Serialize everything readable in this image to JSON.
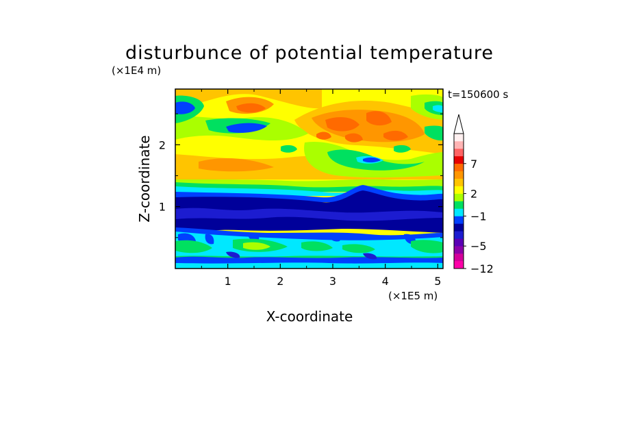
{
  "chart_data": {
    "type": "heatmap",
    "title": "disturbunce of potential temperature",
    "xlabel": "X-coordinate",
    "ylabel": "Z-coordinate",
    "x_unit": "(×1E5 m)",
    "y_unit": "(×1E4 m)",
    "time_label": "t=150600  s",
    "xlim": [
      0,
      5.1
    ],
    "ylim": [
      0,
      2.9
    ],
    "x_ticks": [
      "1",
      "2",
      "3",
      "4",
      "5"
    ],
    "y_ticks": [
      "1",
      "2"
    ],
    "colorbar_labels": [
      "7",
      "2",
      "−1",
      "−5",
      "−12"
    ],
    "palette": [
      "#ff00a8",
      "#d4009a",
      "#8c00a8",
      "#5a00b4",
      "#1c1cd0",
      "#00009a",
      "#0040ff",
      "#00e8ff",
      "#00e060",
      "#aaff00",
      "#ffff00",
      "#ffc400",
      "#ff9600",
      "#ff6a00",
      "#e60000",
      "#ff6464",
      "#ffb4b4",
      "#fff0f0"
    ],
    "layers": [
      {
        "z": [
          0.0,
          0.1
        ],
        "value": "−5 to −1",
        "color": "#0040ff"
      },
      {
        "z": [
          0.1,
          0.6
        ],
        "value": "−1 to 0",
        "color": "#00e8ff"
      },
      {
        "z": [
          0.6,
          1.3
        ],
        "value": "−5 to −3",
        "color": "#00009a"
      },
      {
        "z": [
          1.3,
          1.45
        ],
        "value": "0 to 1",
        "color": "#aaff00"
      },
      {
        "z": [
          1.45,
          2.9
        ],
        "value": "1 to 4",
        "color": "#ffff00"
      }
    ]
  }
}
